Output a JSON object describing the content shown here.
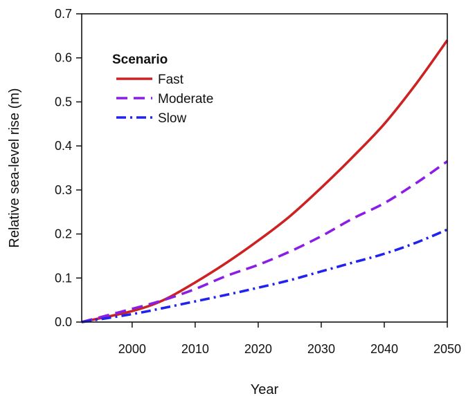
{
  "chart_data": {
    "type": "line",
    "title": "",
    "xlabel": "Year",
    "ylabel": "Relative sea-level rise (m)",
    "xlim": [
      1992,
      2050
    ],
    "ylim": [
      0,
      0.7
    ],
    "x_ticks": [
      2000,
      2010,
      2020,
      2030,
      2040,
      2050
    ],
    "x_tick_labels": [
      "2000",
      "2010",
      "2020",
      "2030",
      "2040",
      "2050"
    ],
    "y_ticks": [
      0,
      0.1,
      0.2,
      0.3,
      0.4,
      0.5,
      0.6,
      0.7
    ],
    "y_tick_labels": [
      "0.0",
      "0.1",
      "0.2",
      "0.3",
      "0.4",
      "0.5",
      "0.6",
      "0.7"
    ],
    "grid": false,
    "legend": {
      "title": "Scenario",
      "position": "top-left"
    },
    "x": [
      1992,
      2000,
      2005,
      2010,
      2015,
      2020,
      2025,
      2030,
      2035,
      2040,
      2045,
      2050
    ],
    "series": [
      {
        "name": "Fast",
        "color": "#cc2222",
        "dash": "solid",
        "values": [
          0.0,
          0.025,
          0.05,
          0.09,
          0.135,
          0.185,
          0.24,
          0.305,
          0.375,
          0.45,
          0.54,
          0.64
        ]
      },
      {
        "name": "Moderate",
        "color": "#8a1ee6",
        "dash": "dash",
        "values": [
          0.0,
          0.03,
          0.05,
          0.075,
          0.105,
          0.13,
          0.16,
          0.195,
          0.235,
          0.27,
          0.315,
          0.365
        ]
      },
      {
        "name": "Slow",
        "color": "#2222ee",
        "dash": "dashdot",
        "values": [
          0.0,
          0.018,
          0.032,
          0.047,
          0.062,
          0.078,
          0.095,
          0.115,
          0.135,
          0.155,
          0.18,
          0.21
        ]
      }
    ]
  }
}
